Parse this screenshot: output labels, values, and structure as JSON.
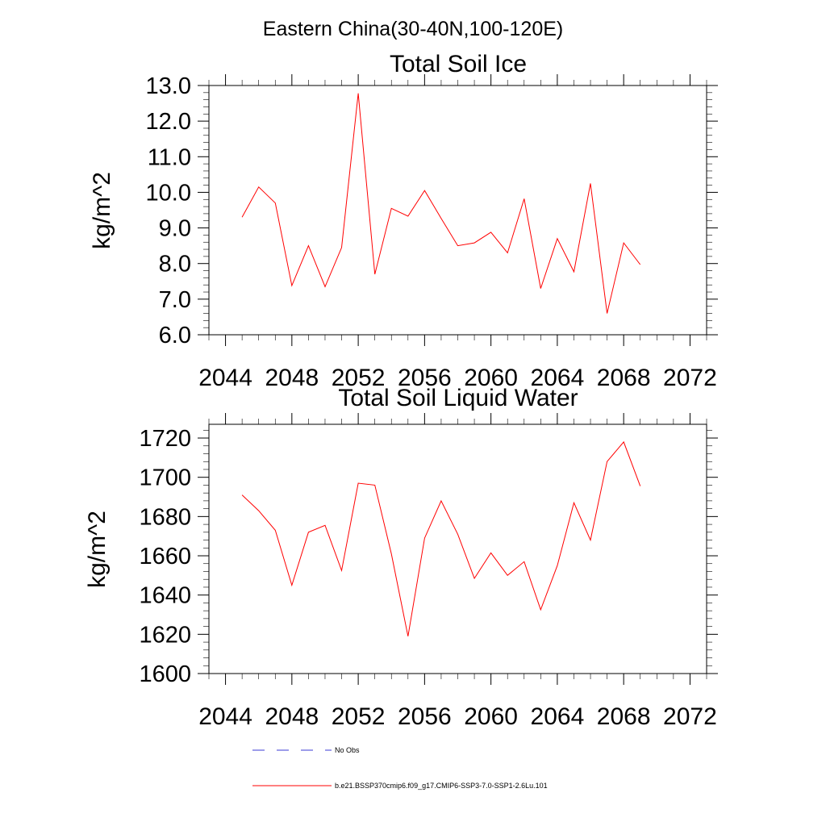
{
  "page_title": "Eastern China(30-40N,100-120E)",
  "legend": [
    {
      "label": "No Obs",
      "style": "dashed",
      "color": "#3b3bd6"
    },
    {
      "label": "b.e21.BSSP370cmip6.f09_g17.CMIP6-SSP3-7.0-SSP1-2.6Lu.101",
      "style": "solid",
      "color": "#ff0000"
    }
  ],
  "chart_data": [
    {
      "type": "line",
      "title": "Total Soil Ice",
      "xlabel": "",
      "ylabel": "kg/m^2",
      "xlim": [
        2043,
        2073
      ],
      "ylim": [
        6.0,
        13.0
      ],
      "x_ticks": [
        2044,
        2048,
        2052,
        2056,
        2060,
        2064,
        2068,
        2072
      ],
      "y_ticks": [
        6.0,
        7.0,
        8.0,
        9.0,
        10.0,
        11.0,
        12.0,
        13.0
      ],
      "y_tick_labels": [
        "6.0",
        "7.0",
        "8.0",
        "9.0",
        "10.0",
        "11.0",
        "12.0",
        "13.0"
      ],
      "grid": false,
      "series": [
        {
          "color": "#ff0000",
          "x": [
            2045,
            2046,
            2047,
            2048,
            2049,
            2050,
            2051,
            2052,
            2053,
            2054,
            2055,
            2056,
            2057,
            2058,
            2059,
            2060,
            2061,
            2062,
            2063,
            2064,
            2065,
            2066,
            2067,
            2068,
            2069
          ],
          "values": [
            9.3,
            10.15,
            9.7,
            7.38,
            8.5,
            7.35,
            8.45,
            12.78,
            7.7,
            9.55,
            9.33,
            10.05,
            9.27,
            8.5,
            8.58,
            8.88,
            8.3,
            9.82,
            7.3,
            8.7,
            7.77,
            10.25,
            6.6,
            8.58,
            7.97
          ]
        }
      ]
    },
    {
      "type": "line",
      "title": "Total Soil Liquid Water",
      "xlabel": "",
      "ylabel": "kg/m^2",
      "xlim": [
        2043,
        2073
      ],
      "ylim": [
        1600,
        1727
      ],
      "x_ticks": [
        2044,
        2048,
        2052,
        2056,
        2060,
        2064,
        2068,
        2072
      ],
      "y_ticks": [
        1600,
        1620,
        1640,
        1660,
        1680,
        1700,
        1720
      ],
      "y_tick_labels": [
        "1600",
        "1620",
        "1640",
        "1660",
        "1680",
        "1700",
        "1720"
      ],
      "grid": false,
      "series": [
        {
          "color": "#ff0000",
          "x": [
            2045,
            2046,
            2047,
            2048,
            2049,
            2050,
            2051,
            2052,
            2053,
            2054,
            2055,
            2056,
            2057,
            2058,
            2059,
            2060,
            2061,
            2062,
            2063,
            2064,
            2065,
            2066,
            2067,
            2068,
            2069
          ],
          "values": [
            1691,
            1683,
            1673,
            1645,
            1672,
            1675.5,
            1652.5,
            1697,
            1696,
            1661,
            1619,
            1669,
            1688,
            1671,
            1648.5,
            1661.5,
            1650,
            1657,
            1632.5,
            1655,
            1687,
            1668,
            1708,
            1718,
            1695.5
          ]
        }
      ]
    }
  ]
}
